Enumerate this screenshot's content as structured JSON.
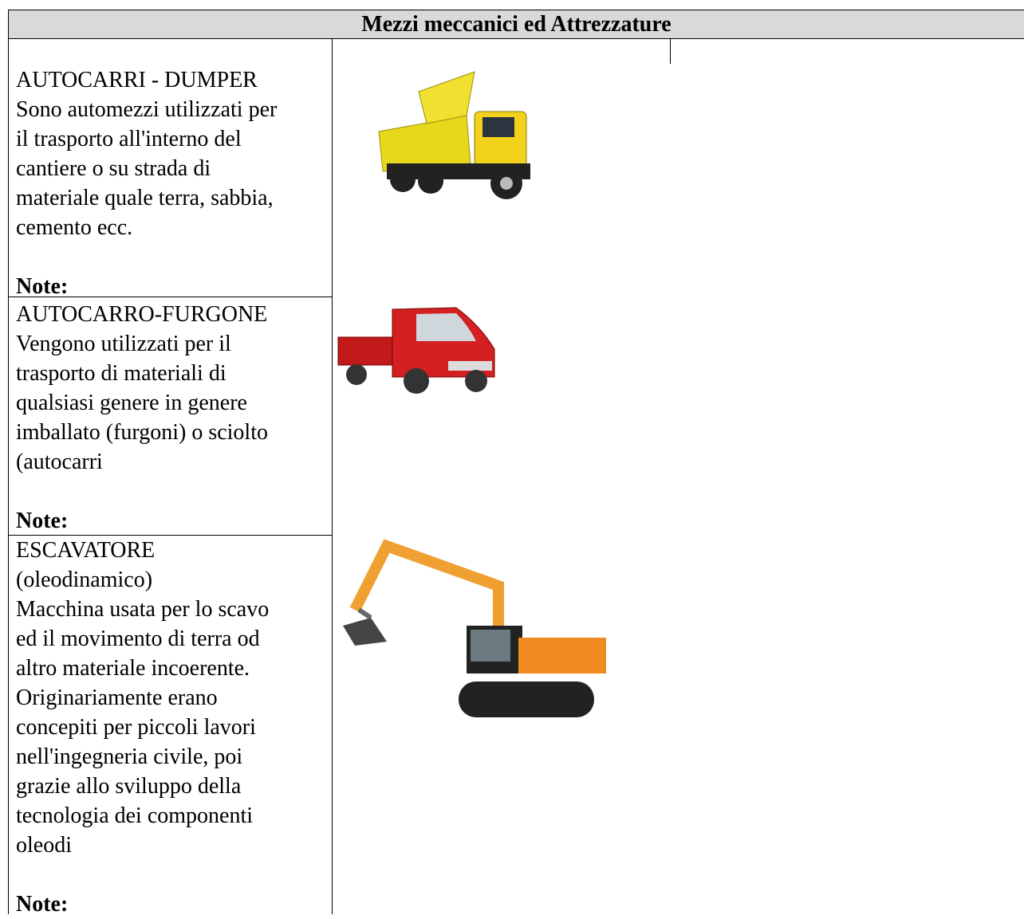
{
  "header": {
    "title": "Mezzi meccanici ed Attrezzature"
  },
  "rows": [
    {
      "lines": [
        "AUTOCARRI - DUMPER",
        "Sono automezzi utilizzati per",
        "il trasporto all'interno del",
        "cantiere o su strada di",
        "materiale quale terra, sabbia,",
        "cemento ecc."
      ],
      "note": "Note:"
    },
    {
      "lines": [
        "AUTOCARRO-FURGONE",
        "Vengono utilizzati per il",
        "trasporto di materiali di",
        "qualsiasi genere in genere",
        "imballato (furgoni) o sciolto",
        "(autocarri"
      ],
      "note": "Note:"
    },
    {
      "lines": [
        "ESCAVATORE",
        "(oleodinamico)",
        "Macchina usata per lo scavo",
        "ed il movimento di terra od",
        "altro materiale incoerente.",
        "Originariamente erano",
        "concepiti per piccoli lavori",
        "nell'ingegneria civile, poi",
        "grazie allo sviluppo della",
        "tecnologia dei componenti",
        "oleodi"
      ],
      "note": "Note:"
    }
  ]
}
